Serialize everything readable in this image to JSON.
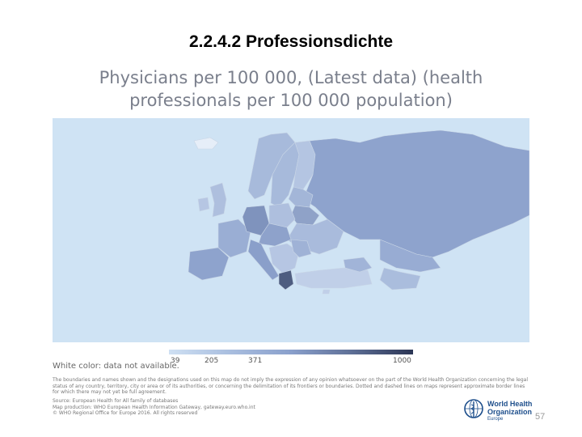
{
  "slide": {
    "title": "2.2.4.2 Professionsdichte",
    "page_number": "57"
  },
  "map": {
    "title_line1": "Physicians per 100 000, (Latest data) (health",
    "title_line2": "professionals per 100 000 population)",
    "sea_color": "#cfe3f4",
    "legend": {
      "ticks": [
        "39",
        "205",
        "371",
        "1000"
      ],
      "colors": [
        "#cfe0f3",
        "#a9bedf",
        "#8aa0cc",
        "#5e6f96",
        "#2b3554"
      ]
    },
    "no_data_note": "White color: data not available.",
    "disclaimer": "The boundaries and names shown and the designations used on this map do not imply the expression of any opinion whatsoever on the part of the World Health Organization concerning the legal status of any country, territory, city or area or of its authorities, or concerning the delimitation of its frontiers or boundaries. Dotted and dashed lines on maps represent approximate border lines for which there may not yet be full agreement.",
    "source_lines": [
      "Source: European Health for All family of databases",
      "Map production: WHO European Health Information Gateway, gateway.euro.who.int",
      "© WHO Regional Office for Europe 2016. All rights reserved"
    ]
  },
  "logo": {
    "line1": "World Health",
    "line2": "Organization",
    "region": "Europe",
    "icon": "who-emblem-icon"
  }
}
